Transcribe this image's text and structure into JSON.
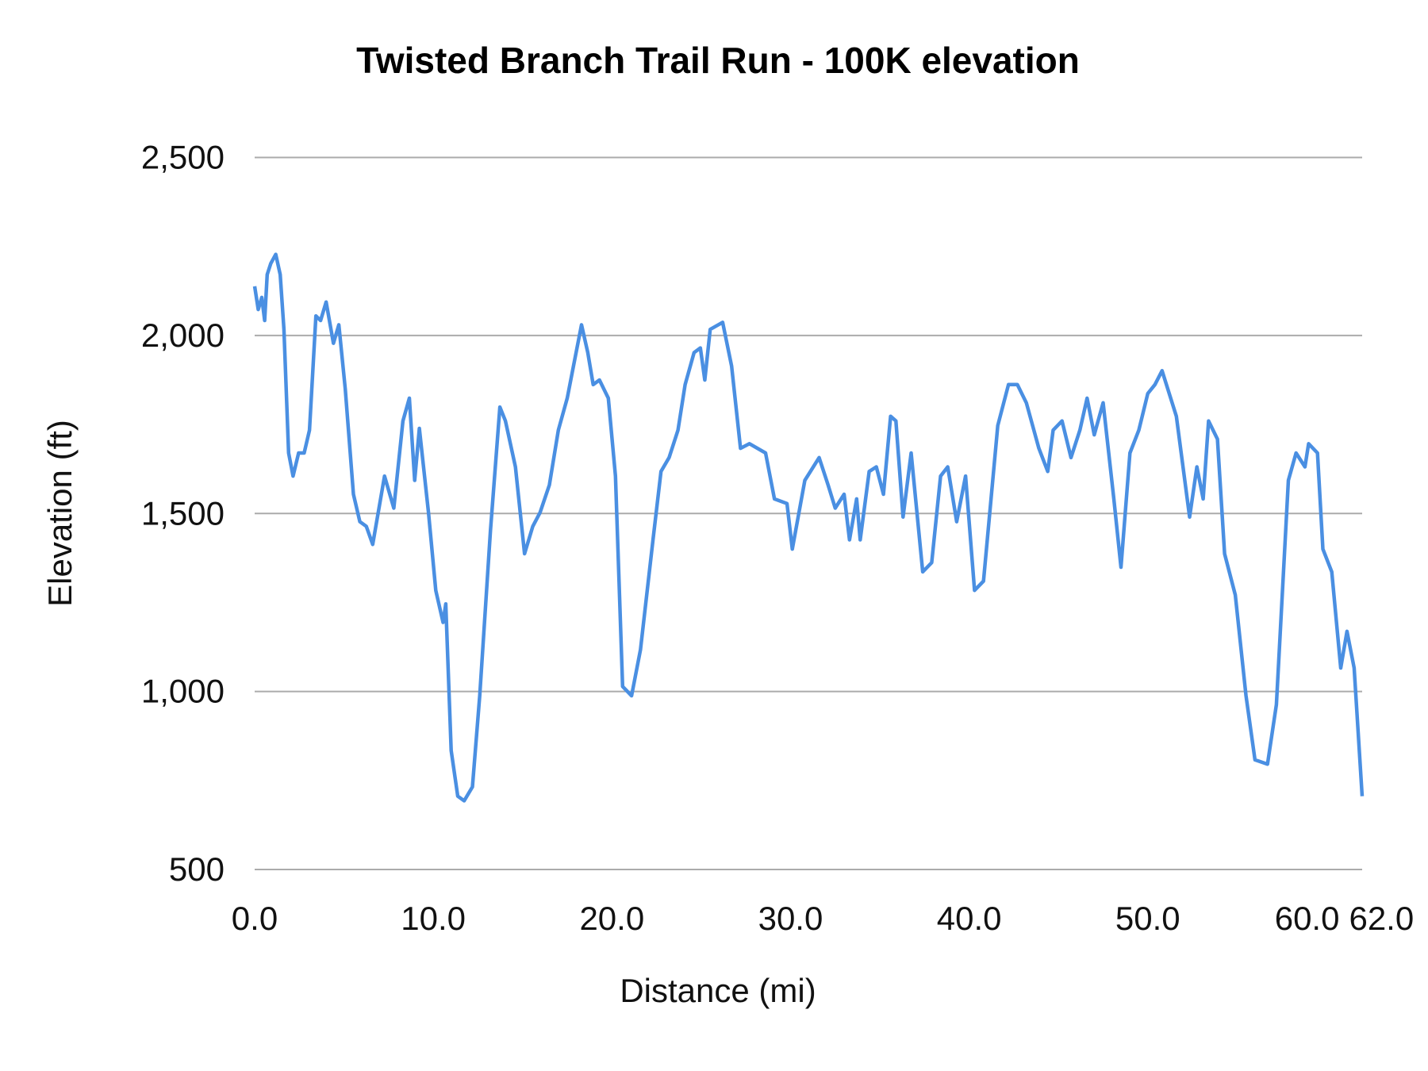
{
  "chart_data": {
    "type": "line",
    "title": "Twisted Branch Trail Run - 100K elevation",
    "xlabel": "Distance (mi)",
    "ylabel": "Elevation (ft)",
    "xlim": [
      0,
      62
    ],
    "ylim": [
      500,
      2500
    ],
    "x_ticks": [
      0,
      10,
      20,
      30,
      40,
      50,
      60,
      62
    ],
    "x_tick_labels": [
      "0.0",
      "10.0",
      "20.0",
      "30.0",
      "40.0",
      "50.0",
      "60.0",
      "62.0"
    ],
    "y_ticks": [
      500,
      1000,
      1500,
      2000,
      2500
    ],
    "y_tick_labels": [
      "500",
      "1,000",
      "1,500",
      "2,000",
      "2,500"
    ],
    "grid": "horizontal",
    "legend": "none",
    "color": "#4a8fe2",
    "series": [
      {
        "x": [
          0,
          0.2,
          0.4,
          0.56,
          0.7,
          0.9,
          1.18,
          1.43,
          1.64,
          1.9,
          2.15,
          2.46,
          2.77,
          3.07,
          3.43,
          3.69,
          4.0,
          4.41,
          4.71,
          5.07,
          5.53,
          5.89,
          6.25,
          6.61,
          7.27,
          7.79,
          8.3,
          8.66,
          8.96,
          9.22,
          9.73,
          10.14,
          10.55,
          10.7,
          11.0,
          11.37,
          11.73,
          12.19,
          12.6,
          13.2,
          13.73,
          14.04,
          14.6,
          15.11,
          15.57,
          15.98,
          16.5,
          17.0,
          17.5,
          17.9,
          18.3,
          18.65,
          18.95,
          19.3,
          19.8,
          20.2,
          20.6,
          21.1,
          21.6,
          22.3,
          22.75,
          23.2,
          23.7,
          24.1,
          24.6,
          24.95,
          25.2,
          25.5,
          26.2,
          26.7,
          27.2,
          27.7,
          28.6,
          29.1,
          29.8,
          30.1,
          30.8,
          31.6,
          32.1,
          32.5,
          33.0,
          33.3,
          33.7,
          33.9,
          34.4,
          34.8,
          35.2,
          35.6,
          35.9,
          36.3,
          36.75,
          37.4,
          37.9,
          38.4,
          38.8,
          39.3,
          39.8,
          40.3,
          40.8,
          41.6,
          42.2,
          42.7,
          43.2,
          43.9,
          44.4,
          44.7,
          45.2,
          45.7,
          46.2,
          46.6,
          47.0,
          47.5,
          48.1,
          48.5,
          49.0,
          49.5,
          50.0,
          50.4,
          50.8,
          51.6,
          52.34,
          52.75,
          53.1,
          53.4,
          53.9,
          54.3,
          54.9,
          55.5,
          56.0,
          56.7,
          57.2,
          57.87,
          58.3,
          58.8,
          59.0,
          59.5,
          59.8,
          60.3,
          60.8,
          61.15,
          61.55,
          62.0
        ],
        "y": [
          2138,
          2073,
          2107,
          2042,
          2171,
          2202,
          2228,
          2171,
          2017,
          1670,
          1605,
          1670,
          1670,
          1734,
          2055,
          2042,
          2094,
          1978,
          2030,
          1850,
          1554,
          1477,
          1464,
          1413,
          1605,
          1515,
          1760,
          1824,
          1593,
          1739,
          1503,
          1284,
          1194,
          1246,
          834,
          706,
          693,
          732,
          988,
          1451,
          1799,
          1760,
          1631,
          1387,
          1464,
          1503,
          1580,
          1734,
          1824,
          1927,
          2030,
          1952,
          1862,
          1875,
          1824,
          1605,
          1014,
          988,
          1117,
          1426,
          1618,
          1657,
          1734,
          1862,
          1952,
          1965,
          1875,
          2017,
          2037,
          1914,
          1683,
          1696,
          1670,
          1541,
          1528,
          1400,
          1593,
          1657,
          1580,
          1515,
          1554,
          1426,
          1541,
          1426,
          1618,
          1631,
          1554,
          1773,
          1760,
          1490,
          1670,
          1336,
          1362,
          1605,
          1631,
          1477,
          1605,
          1284,
          1310,
          1747,
          1862,
          1862,
          1811,
          1683,
          1618,
          1734,
          1760,
          1657,
          1734,
          1824,
          1721,
          1811,
          1541,
          1349,
          1670,
          1734,
          1837,
          1862,
          1901,
          1773,
          1490,
          1631,
          1541,
          1760,
          1709,
          1387,
          1271,
          988,
          808,
          796,
          963,
          1593,
          1670,
          1631,
          1696,
          1670,
          1400,
          1336,
          1066,
          1169,
          1066,
          706
        ]
      }
    ]
  }
}
